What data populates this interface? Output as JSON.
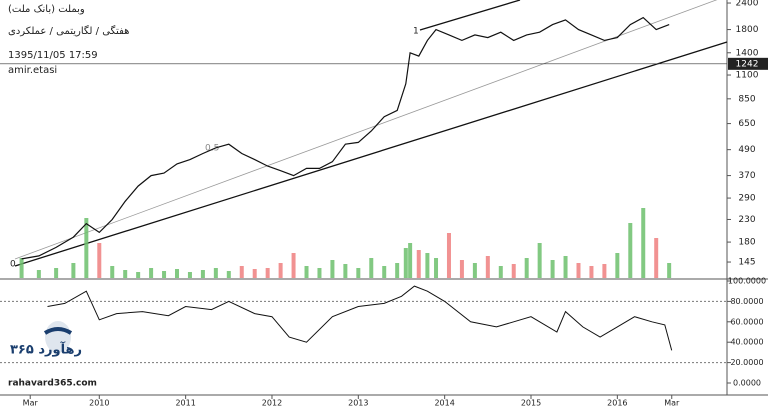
{
  "chart_data": {
    "type": "line",
    "title": "(بانک ملت) وبملت",
    "subtitle": "هفتگی / لگاریتمی / عملکردی",
    "timestamp": "1395/11/05 17:59",
    "user": "amir.etasi",
    "brand": "رهآورد ۳۶۵",
    "website": "rahavard365.com",
    "annotations": [
      "0.5",
      "1",
      "0"
    ],
    "last_price": 1242,
    "log_scale": true,
    "xlim": [
      2008.85,
      2017.27
    ],
    "xticks": [
      {
        "value": 2009.2,
        "label": "Mar"
      },
      2010,
      2011,
      2012,
      2013,
      2014,
      2015,
      2016,
      {
        "value": 2016.63,
        "label": "Mar"
      }
    ],
    "ylim": [
      126,
      2480
    ],
    "yticks": [
      2400,
      1800,
      1400,
      1100,
      850,
      650,
      490,
      370,
      290,
      230,
      180,
      145
    ],
    "price": {
      "color": "#111111",
      "x": [
        2009.1,
        2009.3,
        2009.5,
        2009.7,
        2009.85,
        2010.0,
        2010.15,
        2010.3,
        2010.45,
        2010.6,
        2010.75,
        2010.9,
        2011.05,
        2011.2,
        2011.35,
        2011.5,
        2011.65,
        2011.8,
        2011.95,
        2012.1,
        2012.25,
        2012.4,
        2012.55,
        2012.7,
        2012.85,
        2013.0,
        2013.15,
        2013.3,
        2013.45,
        2013.55,
        2013.6,
        2013.7,
        2013.8,
        2013.9,
        2014.05,
        2014.2,
        2014.35,
        2014.5,
        2014.65,
        2014.8,
        2014.95,
        2015.1,
        2015.25,
        2015.4,
        2015.55,
        2015.7,
        2015.85,
        2016.0,
        2016.15,
        2016.3,
        2016.45,
        2016.6
      ],
      "values": [
        150,
        155,
        170,
        190,
        220,
        200,
        230,
        280,
        330,
        370,
        380,
        420,
        440,
        470,
        500,
        520,
        470,
        440,
        410,
        390,
        370,
        400,
        400,
        430,
        520,
        530,
        600,
        700,
        750,
        1000,
        1400,
        1350,
        1600,
        1800,
        1700,
        1600,
        1700,
        1650,
        1750,
        1600,
        1700,
        1750,
        1900,
        2000,
        1800,
        1700,
        1600,
        1650,
        1900,
        2050,
        1800,
        1900
      ]
    },
    "volume": {
      "up_color": "#6cbf6c",
      "down_color": "#ef7f7f",
      "values": [
        20,
        8,
        10,
        15,
        60,
        35,
        12,
        8,
        6,
        10,
        7,
        9,
        6,
        8,
        10,
        7,
        12,
        9,
        10,
        15,
        25,
        12,
        10,
        18,
        14,
        10,
        20,
        12,
        15,
        30,
        35,
        28,
        25,
        20,
        45,
        18,
        15,
        22,
        12,
        14,
        20,
        35,
        18,
        22,
        15,
        12,
        14,
        25,
        55,
        70,
        40,
        15
      ]
    },
    "oscillator": {
      "color": "#111111",
      "ylim": [
        0,
        100
      ],
      "yticks": [
        {
          "value": 100,
          "label": "100.0000"
        },
        {
          "value": 80,
          "label": "80.0000"
        },
        {
          "value": 60,
          "label": "60.0000"
        },
        {
          "value": 40,
          "label": "40.0000"
        },
        {
          "value": 20,
          "label": "20.0000"
        },
        {
          "value": 0,
          "label": "0.0000"
        }
      ],
      "levels": [
        80,
        20
      ],
      "x": [
        2009.4,
        2009.6,
        2009.85,
        2010.0,
        2010.2,
        2010.5,
        2010.8,
        2011.0,
        2011.3,
        2011.5,
        2011.8,
        2012.0,
        2012.2,
        2012.4,
        2012.7,
        2013.0,
        2013.3,
        2013.5,
        2013.65,
        2013.8,
        2014.0,
        2014.3,
        2014.6,
        2014.8,
        2015.0,
        2015.3,
        2015.4,
        2015.6,
        2015.8,
        2016.0,
        2016.2,
        2016.4,
        2016.55,
        2016.63
      ],
      "values": [
        75,
        78,
        90,
        62,
        68,
        70,
        66,
        75,
        72,
        80,
        68,
        65,
        45,
        40,
        65,
        75,
        78,
        85,
        95,
        90,
        80,
        60,
        55,
        60,
        65,
        50,
        70,
        55,
        45,
        55,
        65,
        60,
        57,
        32
      ]
    }
  }
}
